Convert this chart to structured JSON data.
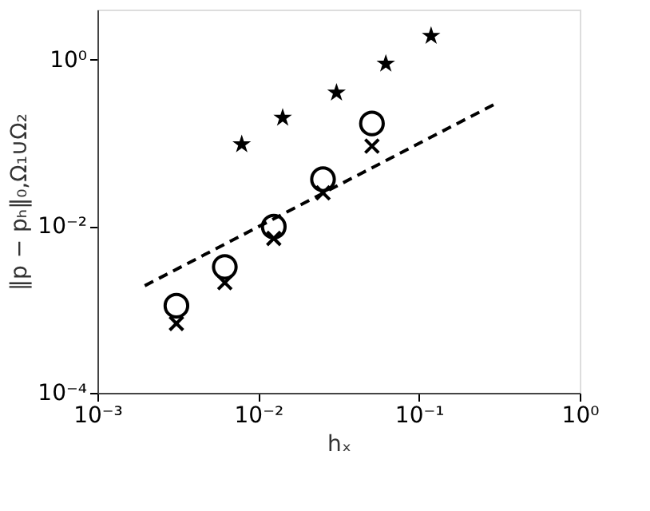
{
  "chart_data": {
    "type": "scatter",
    "xlabel": "hₓ",
    "ylabel": "‖p − pₕ‖₀,Ω₁∪Ω₂",
    "log": "xy",
    "grid": false,
    "xlim": [
      0.001,
      1
    ],
    "ylim": [
      0.0001,
      3.98
    ],
    "xticks": [
      {
        "value": 0.001,
        "label": "10⁻³"
      },
      {
        "value": 0.01,
        "label": "10⁻²"
      },
      {
        "value": 0.1,
        "label": "10⁻¹"
      },
      {
        "value": 1,
        "label": "10⁰"
      }
    ],
    "yticks": [
      {
        "value": 0.0001,
        "label": "10⁻⁴"
      },
      {
        "value": 0.01,
        "label": "10⁻²"
      },
      {
        "value": 1,
        "label": "10⁰"
      }
    ],
    "series": [
      {
        "marker": "star",
        "color": "#000000",
        "x": [
          0.0079,
          0.0142,
          0.0307,
          0.0622,
          0.119
        ],
        "values": [
          0.096,
          0.2,
          0.4,
          0.89,
          1.92
        ]
      },
      {
        "marker": "circle",
        "color": "#000000",
        "x": [
          0.0031,
          0.0062,
          0.0125,
          0.0253,
          0.051
        ],
        "values": [
          0.00111,
          0.00324,
          0.00987,
          0.0366,
          0.171
        ]
      },
      {
        "marker": "cross",
        "color": "#000000",
        "x": [
          0.0031,
          0.0062,
          0.0125,
          0.0253,
          0.051
        ],
        "values": [
          0.00068,
          0.0021,
          0.00713,
          0.0251,
          0.0914
        ]
      },
      {
        "type": "line",
        "marker": "none",
        "line_style": "dashed",
        "color": "#000000",
        "x": [
          0.00197,
          0.295
        ],
        "values": [
          0.00193,
          0.291
        ]
      }
    ]
  }
}
